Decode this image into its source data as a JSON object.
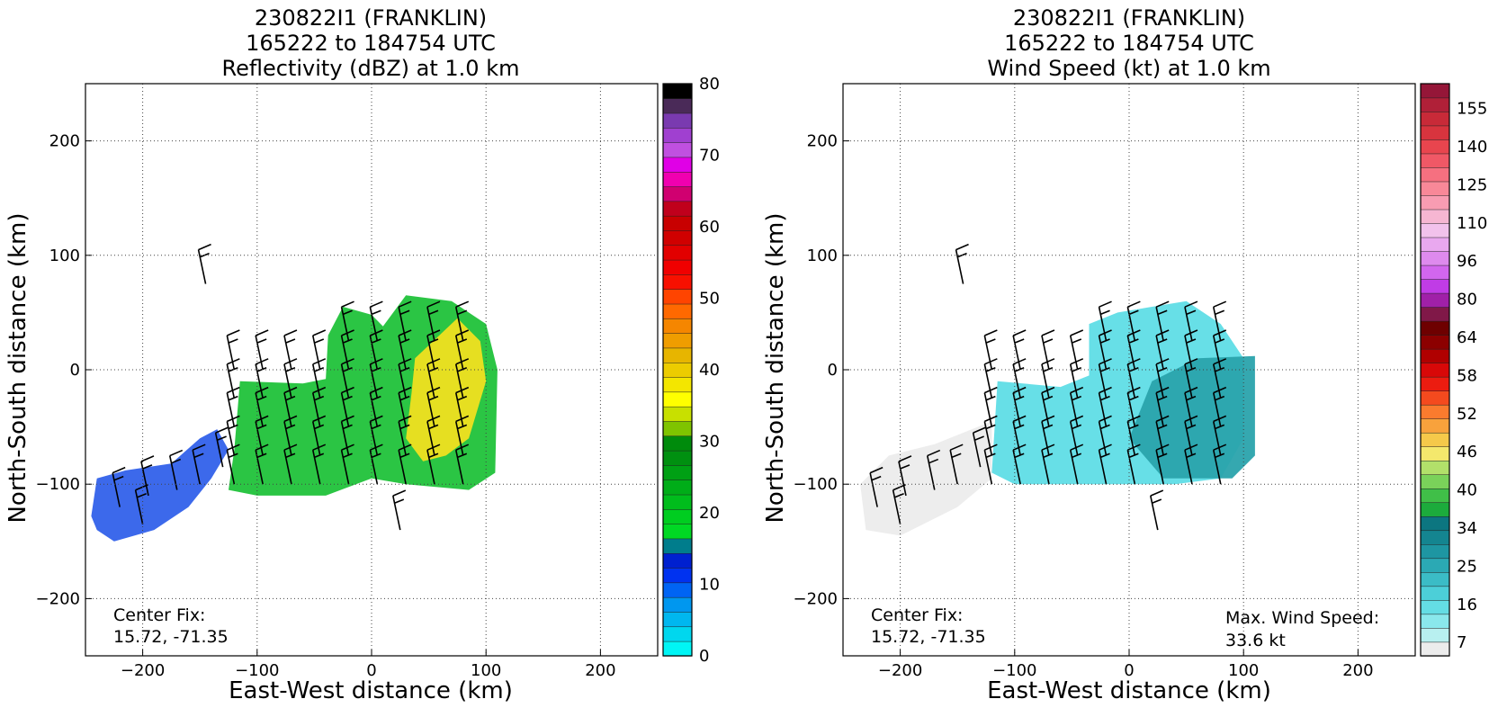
{
  "colors": {
    "reflectivity_cmap": [
      "#00f5f5",
      "#00d7ee",
      "#00b7ef",
      "#0097ef",
      "#0064f4",
      "#0032f0",
      "#0020d0",
      "#007d8c",
      "#00d824",
      "#00cd20",
      "#00bd1c",
      "#00ad18",
      "#00a014",
      "#009010",
      "#008b0c",
      "#7fc400",
      "#c8e000",
      "#ffff00",
      "#f3e600",
      "#eccc00",
      "#e7b500",
      "#ef9d00",
      "#f58600",
      "#ff6900",
      "#ff4400",
      "#f81000",
      "#f00000",
      "#e20000",
      "#d00000",
      "#c80000",
      "#c0001c",
      "#d00070",
      "#f000b0",
      "#e000e6",
      "#c050e0",
      "#a040d0",
      "#7a3ab0",
      "#4a2a58",
      "#000000"
    ],
    "windspeed_cmap": [
      "#ececec",
      "#b8f0f0",
      "#8ae8ec",
      "#64dde4",
      "#4ccfd8",
      "#3bbcc6",
      "#2ba9b4",
      "#1e96a2",
      "#148590",
      "#0c7680",
      "#1cab3c",
      "#40bf48",
      "#7ad25a",
      "#b2e06a",
      "#f4e86c",
      "#f5c94a",
      "#f8a23c",
      "#fa7b2e",
      "#f44a1e",
      "#ec1c10",
      "#d80808",
      "#b00000",
      "#8c0000",
      "#6e0000",
      "#801848",
      "#a020a8",
      "#c03ce6",
      "#d266ee",
      "#de8aee",
      "#e9a8ef",
      "#f2c2ec",
      "#f6b6d2",
      "#f89cb2",
      "#f88898",
      "#f67080",
      "#f05866",
      "#e8454e",
      "#d8343e",
      "#c82a38",
      "#b02038",
      "#951638"
    ],
    "echo_cyan": "#5fdde6",
    "echo_teal": "#2aa3ac",
    "echo_green": "#20c23a",
    "echo_yellow": "#f0e020",
    "echo_blue": "#1a4fe8"
  },
  "panels": [
    {
      "title_line1": "230822I1 (FRANKLIN)",
      "title_line2": "165222 to 184754 UTC",
      "title_line3": "Reflectivity (dBZ) at 1.0 km",
      "xlabel": "East-West distance (km)",
      "ylabel": "North-South distance (km)",
      "center_fix_label": "Center Fix:",
      "center_fix_value": "15.72, -71.35",
      "colorbar_ticks": [
        "0",
        "10",
        "20",
        "30",
        "40",
        "50",
        "60",
        "70",
        "80"
      ]
    },
    {
      "title_line1": "230822I1 (FRANKLIN)",
      "title_line2": "165222 to 184754 UTC",
      "title_line3": "Wind Speed (kt) at 1.0 km",
      "xlabel": "East-West distance (km)",
      "ylabel": "North-South distance (km)",
      "center_fix_label": "Center Fix:",
      "center_fix_value": "15.72, -71.35",
      "max_wind_label": "Max. Wind Speed:",
      "max_wind_value": "33.6 kt",
      "colorbar_ticks": [
        "7",
        "16",
        "25",
        "34",
        "40",
        "46",
        "52",
        "58",
        "64",
        "80",
        "96",
        "110",
        "125",
        "140",
        "155"
      ]
    }
  ],
  "chart_data": [
    {
      "type": "heatmap",
      "title": "230822I1 (FRANKLIN) 165222 to 184754 UTC Reflectivity (dBZ) at 1.0 km",
      "xlabel": "East-West distance (km)",
      "ylabel": "North-South distance (km)",
      "xlim": [
        -250,
        250
      ],
      "ylim": [
        -250,
        250
      ],
      "xticks": [
        -200,
        -100,
        0,
        100,
        200
      ],
      "yticks": [
        -200,
        -100,
        0,
        100,
        200
      ],
      "grid": true,
      "colorbar": {
        "min": 0,
        "max": 80,
        "ticks": [
          0,
          10,
          20,
          30,
          40,
          50,
          60,
          70,
          80
        ],
        "label_position": "right"
      },
      "echo_regions": [
        {
          "level": "light (10-20 dBZ)",
          "polygon_km": [
            [
              -245,
              -128
            ],
            [
              -240,
              -95
            ],
            [
              -215,
              -88
            ],
            [
              -175,
              -82
            ],
            [
              -150,
              -60
            ],
            [
              -135,
              -52
            ],
            [
              -125,
              -70
            ],
            [
              -140,
              -95
            ],
            [
              -160,
              -120
            ],
            [
              -190,
              -140
            ],
            [
              -225,
              -150
            ],
            [
              -240,
              -140
            ]
          ]
        },
        {
          "level": "moderate (20-30 dBZ)",
          "polygon_km": [
            [
              -125,
              -105
            ],
            [
              -120,
              -70
            ],
            [
              -115,
              -10
            ],
            [
              -60,
              -12
            ],
            [
              -40,
              -8
            ],
            [
              -38,
              30
            ],
            [
              -25,
              55
            ],
            [
              0,
              48
            ],
            [
              10,
              38
            ],
            [
              30,
              65
            ],
            [
              70,
              60
            ],
            [
              100,
              40
            ],
            [
              110,
              0
            ],
            [
              108,
              -90
            ],
            [
              85,
              -105
            ],
            [
              30,
              -100
            ],
            [
              0,
              -95
            ],
            [
              -40,
              -110
            ],
            [
              -100,
              -110
            ]
          ]
        },
        {
          "level": "moderate-heavy (30-38 dBZ)",
          "polygon_km": [
            [
              38,
              10
            ],
            [
              75,
              45
            ],
            [
              95,
              25
            ],
            [
              100,
              -10
            ],
            [
              85,
              -60
            ],
            [
              65,
              -75
            ],
            [
              45,
              -80
            ],
            [
              30,
              -60
            ],
            [
              35,
              -20
            ]
          ]
        }
      ],
      "wind_barbs_present": true,
      "annotations": [
        "Center Fix:",
        "15.72, -71.35"
      ]
    },
    {
      "type": "heatmap",
      "title": "230822I1 (FRANKLIN) 165222 to 184754 UTC Wind Speed (kt) at 1.0 km",
      "xlabel": "East-West distance (km)",
      "ylabel": "North-South distance (km)",
      "xlim": [
        -250,
        250
      ],
      "ylim": [
        -250,
        250
      ],
      "xticks": [
        -200,
        -100,
        0,
        100,
        200
      ],
      "yticks": [
        -200,
        -100,
        0,
        100,
        200
      ],
      "grid": true,
      "colorbar": {
        "ticks": [
          7,
          16,
          25,
          34,
          40,
          46,
          52,
          58,
          64,
          80,
          96,
          110,
          125,
          140,
          155
        ],
        "label_position": "right"
      },
      "wind_regions": [
        {
          "level": "7-12 kt",
          "polygon_km": [
            [
              -235,
              -100
            ],
            [
              -210,
              -75
            ],
            [
              -170,
              -65
            ],
            [
              -120,
              -45
            ],
            [
              -120,
              -95
            ],
            [
              -150,
              -120
            ],
            [
              -200,
              -145
            ],
            [
              -230,
              -140
            ]
          ]
        },
        {
          "level": "12-20 kt",
          "polygon_km": [
            [
              -120,
              -90
            ],
            [
              -115,
              -10
            ],
            [
              -60,
              -15
            ],
            [
              -35,
              -5
            ],
            [
              -35,
              40
            ],
            [
              -10,
              50
            ],
            [
              20,
              55
            ],
            [
              50,
              60
            ],
            [
              80,
              40
            ],
            [
              100,
              10
            ],
            [
              100,
              -60
            ],
            [
              80,
              -95
            ],
            [
              40,
              -100
            ],
            [
              0,
              -100
            ],
            [
              -60,
              -100
            ],
            [
              -100,
              -100
            ]
          ]
        },
        {
          "level": "20-27 kt",
          "polygon_km": [
            [
              0,
              -60
            ],
            [
              20,
              -10
            ],
            [
              60,
              10
            ],
            [
              110,
              12
            ],
            [
              110,
              -75
            ],
            [
              90,
              -95
            ],
            [
              30,
              -95
            ]
          ]
        }
      ],
      "wind_barbs_present": true,
      "annotations": [
        "Center Fix:",
        "15.72, -71.35",
        "Max. Wind Speed:",
        "33.6 kt"
      ]
    }
  ]
}
